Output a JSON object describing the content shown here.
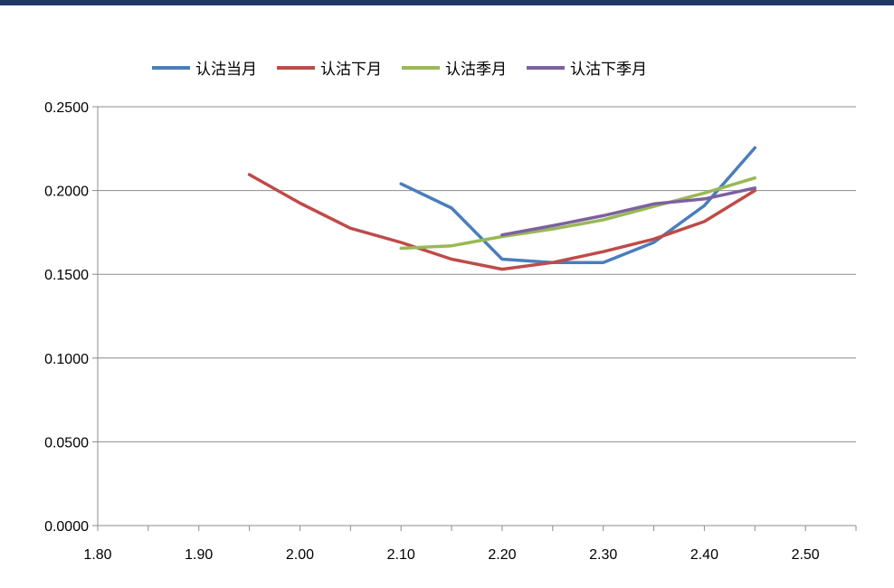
{
  "chart_data": {
    "type": "line",
    "title": "",
    "xlabel": "",
    "ylabel": "",
    "xlim": [
      1.8,
      2.55
    ],
    "ylim": [
      0,
      0.25
    ],
    "x_ticks": [
      "1.80",
      "1.90",
      "2.00",
      "2.10",
      "2.20",
      "2.30",
      "2.40",
      "2.50"
    ],
    "y_ticks": [
      "0.0000",
      "0.0500",
      "0.1000",
      "0.1500",
      "0.2000",
      "0.2500"
    ],
    "grid": "horizontal",
    "legend_position": "top",
    "series": [
      {
        "name": "认沽当月",
        "color": "#4a7ebb",
        "x": [
          2.1,
          2.15,
          2.2,
          2.25,
          2.3,
          2.35,
          2.4,
          2.45
        ],
        "y": [
          0.204,
          0.1895,
          0.159,
          0.157,
          0.157,
          0.169,
          0.191,
          0.2255
        ]
      },
      {
        "name": "认沽下月",
        "color": "#be4b48",
        "x": [
          1.95,
          2.0,
          2.05,
          2.1,
          2.15,
          2.2,
          2.25,
          2.3,
          2.35,
          2.4,
          2.45
        ],
        "y": [
          0.2095,
          0.1925,
          0.1775,
          0.169,
          0.159,
          0.153,
          0.157,
          0.1635,
          0.171,
          0.1815,
          0.2
        ]
      },
      {
        "name": "认沽季月",
        "color": "#98b954",
        "x": [
          2.1,
          2.15,
          2.2,
          2.25,
          2.3,
          2.35,
          2.4,
          2.45
        ],
        "y": [
          0.1655,
          0.167,
          0.1725,
          0.177,
          0.1825,
          0.1905,
          0.1985,
          0.2075
        ]
      },
      {
        "name": "认沽下季月",
        "color": "#7d60a0",
        "x": [
          2.2,
          2.25,
          2.3,
          2.35,
          2.4,
          2.45
        ],
        "y": [
          0.1735,
          0.179,
          0.185,
          0.192,
          0.195,
          0.2015
        ]
      }
    ]
  }
}
